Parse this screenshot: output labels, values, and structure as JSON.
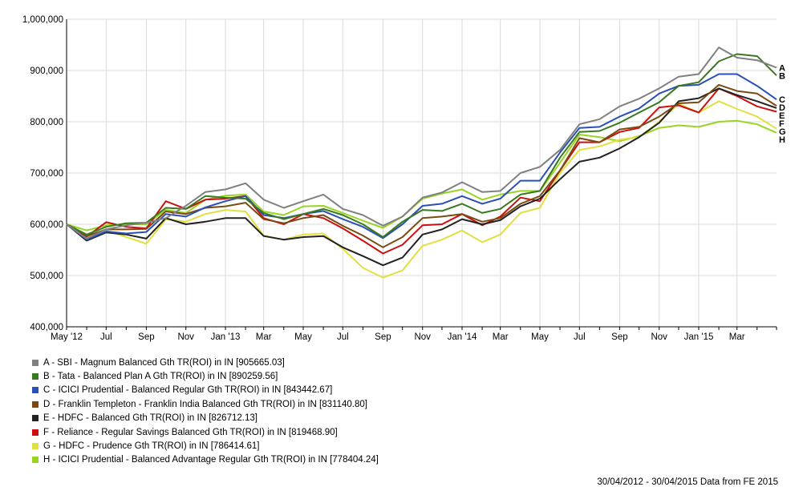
{
  "chart_data": {
    "type": "line",
    "title": "",
    "xlabel": "",
    "ylabel": "",
    "ylim": [
      400000,
      1000000
    ],
    "y_ticks": [
      400000,
      500000,
      600000,
      700000,
      800000,
      900000,
      1000000
    ],
    "y_tick_labels": [
      "400,000",
      "500,000",
      "600,000",
      "700,000",
      "800,000",
      "900,000",
      "1,000,000"
    ],
    "x_tick_labels": [
      "May '12",
      "Jul",
      "Sep",
      "Nov",
      "Jan '13",
      "Mar",
      "May",
      "Jul",
      "Sep",
      "Nov",
      "Jan '14",
      "Mar",
      "May",
      "Jul",
      "Sep",
      "Nov",
      "Jan '15",
      "Mar"
    ],
    "x": [
      "2012-04-30",
      "2012-05-31",
      "2012-06-30",
      "2012-07-31",
      "2012-08-31",
      "2012-09-30",
      "2012-10-31",
      "2012-11-30",
      "2012-12-31",
      "2013-01-31",
      "2013-02-28",
      "2013-03-31",
      "2013-04-30",
      "2013-05-31",
      "2013-06-30",
      "2013-07-31",
      "2013-08-31",
      "2013-09-30",
      "2013-10-31",
      "2013-11-30",
      "2013-12-31",
      "2014-01-31",
      "2014-02-28",
      "2014-03-31",
      "2014-04-30",
      "2014-05-31",
      "2014-06-30",
      "2014-07-31",
      "2014-08-31",
      "2014-09-30",
      "2014-10-31",
      "2014-11-30",
      "2014-12-31",
      "2015-01-31",
      "2015-02-28",
      "2015-03-31",
      "2015-04-30"
    ],
    "grid": true,
    "legend_position": "bottom",
    "series": [
      {
        "name": "A - SBI - Magnum Balanced Gth TR(ROI) in IN [905665.03]",
        "end_label": "A",
        "color": "#808080",
        "values": [
          600000,
          572000,
          590000,
          598000,
          603000,
          612000,
          636000,
          663000,
          668000,
          680000,
          648000,
          632000,
          645000,
          658000,
          630000,
          618000,
          597000,
          615000,
          652000,
          662000,
          682000,
          663000,
          665000,
          700000,
          712000,
          745000,
          795000,
          805000,
          830000,
          845000,
          865000,
          888000,
          893000,
          945000,
          925000,
          920000,
          905665
        ]
      },
      {
        "name": "B - Tata - Balanced Plan A Gth TR(ROI) in IN [890259.56]",
        "end_label": "B",
        "color": "#3a7a1e",
        "values": [
          600000,
          580000,
          595000,
          602000,
          603000,
          632000,
          630000,
          655000,
          652000,
          650000,
          622000,
          610000,
          620000,
          630000,
          618000,
          600000,
          575000,
          605000,
          628000,
          626000,
          640000,
          622000,
          630000,
          658000,
          665000,
          730000,
          780000,
          782000,
          798000,
          818000,
          838000,
          870000,
          877000,
          918000,
          932000,
          928000,
          890260
        ]
      },
      {
        "name": "C - ICICI Prudential - Balanced Regular Gth TR(ROI) in IN [843442.67]",
        "end_label": "C",
        "color": "#2a4fb5",
        "values": [
          600000,
          570000,
          586000,
          582000,
          585000,
          620000,
          615000,
          633000,
          645000,
          655000,
          618000,
          612000,
          620000,
          626000,
          610000,
          595000,
          573000,
          600000,
          636000,
          640000,
          655000,
          640000,
          650000,
          685000,
          685000,
          740000,
          788000,
          790000,
          810000,
          826000,
          855000,
          870000,
          872000,
          893000,
          893000,
          870000,
          843443
        ]
      },
      {
        "name": "D - Franklin Templeton - Franklin India Balanced Gth TR(ROI) in IN [831140.80]",
        "end_label": "D",
        "color": "#7a4a12",
        "values": [
          600000,
          577000,
          590000,
          590000,
          591000,
          625000,
          620000,
          632000,
          635000,
          642000,
          610000,
          602000,
          612000,
          618000,
          597000,
          578000,
          555000,
          575000,
          612000,
          615000,
          620000,
          605000,
          612000,
          640000,
          655000,
          705000,
          768000,
          760000,
          785000,
          790000,
          810000,
          836000,
          838000,
          872000,
          860000,
          855000,
          831141
        ]
      },
      {
        "name": "E - HDFC - Balanced Gth TR(ROI) in IN [826712.13]",
        "end_label": "E",
        "color": "#222222",
        "values": [
          600000,
          568000,
          584000,
          580000,
          572000,
          612000,
          600000,
          605000,
          612000,
          612000,
          577000,
          570000,
          575000,
          577000,
          555000,
          538000,
          520000,
          535000,
          580000,
          590000,
          610000,
          600000,
          608000,
          635000,
          650000,
          688000,
          722000,
          730000,
          748000,
          770000,
          798000,
          840000,
          846000,
          865000,
          852000,
          840000,
          826712
        ]
      },
      {
        "name": "F - Reliance - Regular Savings Balanced Gth TR(ROI) in IN [819468.90]",
        "end_label": "F",
        "color": "#cc1010",
        "values": [
          600000,
          576000,
          604000,
          595000,
          592000,
          645000,
          630000,
          648000,
          650000,
          655000,
          612000,
          600000,
          620000,
          612000,
          592000,
          568000,
          543000,
          560000,
          598000,
          600000,
          620000,
          598000,
          615000,
          652000,
          645000,
          705000,
          760000,
          760000,
          780000,
          788000,
          828000,
          832000,
          818000,
          865000,
          850000,
          830000,
          819469
        ]
      },
      {
        "name": "G - HDFC - Prudence Gth TR(ROI) in IN [786414.61]",
        "end_label": "G",
        "color": "#e0e040",
        "values": [
          600000,
          576000,
          588000,
          575000,
          562000,
          610000,
          605000,
          620000,
          628000,
          625000,
          578000,
          570000,
          580000,
          582000,
          552000,
          515000,
          496000,
          510000,
          558000,
          570000,
          588000,
          565000,
          580000,
          622000,
          632000,
          700000,
          745000,
          752000,
          765000,
          770000,
          800000,
          835000,
          818000,
          840000,
          825000,
          810000,
          786415
        ]
      },
      {
        "name": "H - ICICI Prudential - Balanced Advantage Regular Gth TR(ROI) in IN [778404.24]",
        "end_label": "H",
        "color": "#99d422",
        "values": [
          600000,
          588000,
          598000,
          600000,
          600000,
          628000,
          622000,
          648000,
          656000,
          658000,
          625000,
          618000,
          635000,
          636000,
          622000,
          607000,
          593000,
          615000,
          650000,
          660000,
          668000,
          648000,
          658000,
          665000,
          665000,
          720000,
          775000,
          770000,
          762000,
          772000,
          788000,
          793000,
          790000,
          800000,
          802000,
          795000,
          778404
        ]
      }
    ]
  },
  "footer": {
    "text": "30/04/2012 - 30/04/2015 Data from FE 2015"
  }
}
